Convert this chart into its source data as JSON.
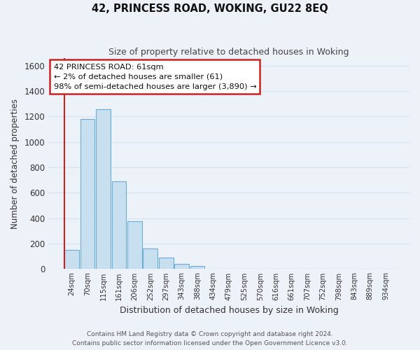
{
  "title": "42, PRINCESS ROAD, WOKING, GU22 8EQ",
  "subtitle": "Size of property relative to detached houses in Woking",
  "xlabel": "Distribution of detached houses by size in Woking",
  "ylabel": "Number of detached properties",
  "bar_labels": [
    "24sqm",
    "70sqm",
    "115sqm",
    "161sqm",
    "206sqm",
    "252sqm",
    "297sqm",
    "343sqm",
    "388sqm",
    "434sqm",
    "479sqm",
    "525sqm",
    "570sqm",
    "616sqm",
    "661sqm",
    "707sqm",
    "752sqm",
    "798sqm",
    "843sqm",
    "889sqm",
    "934sqm"
  ],
  "bar_values": [
    150,
    1180,
    1260,
    690,
    375,
    160,
    90,
    38,
    22,
    0,
    0,
    0,
    0,
    0,
    0,
    0,
    0,
    0,
    0,
    0,
    0
  ],
  "bar_facecolor": "#c8dff0",
  "bar_edgecolor": "#6aaed6",
  "bar_linewidth": 0.8,
  "annotation_lines": [
    "42 PRINCESS ROAD: 61sqm",
    "← 2% of detached houses are smaller (61)",
    "98% of semi-detached houses are larger (3,890) →"
  ],
  "ylim": [
    0,
    1660
  ],
  "yticks": [
    0,
    200,
    400,
    600,
    800,
    1000,
    1200,
    1400,
    1600
  ],
  "footer_line1": "Contains HM Land Registry data © Crown copyright and database right 2024.",
  "footer_line2": "Contains public sector information licensed under the Open Government Licence v3.0.",
  "bg_color": "#edf2f8",
  "grid_color": "#d8e4f0",
  "annotation_box_facecolor": "#ffffff",
  "annotation_box_edgecolor": "#cc2222",
  "vline_color": "#cc2222",
  "title_color": "#111111",
  "subtitle_color": "#444444",
  "label_color": "#333333",
  "tick_color": "#333333",
  "footer_color": "#555555"
}
